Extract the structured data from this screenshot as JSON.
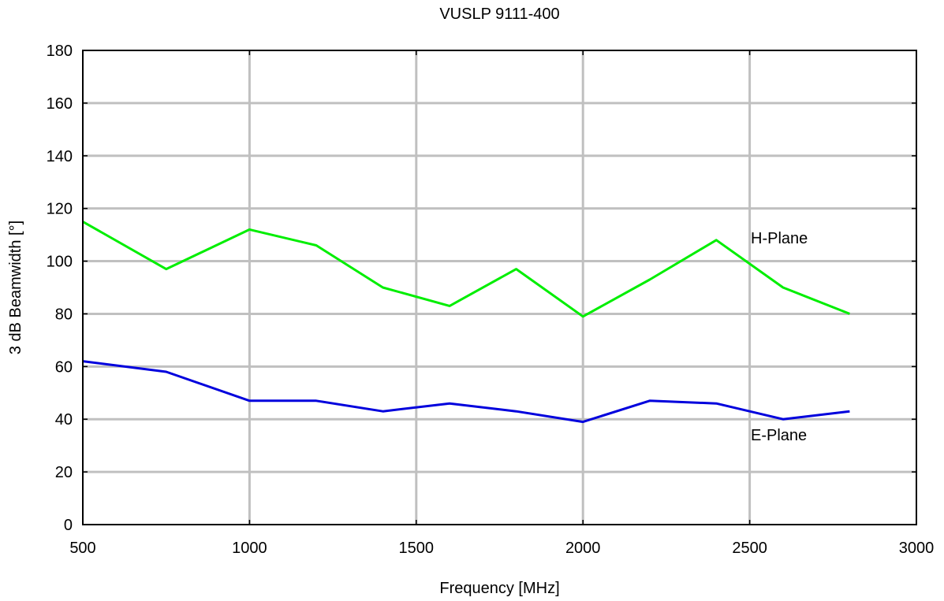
{
  "chart_data": {
    "type": "line",
    "title": "VUSLP 9111-400",
    "xlabel": "Frequency [MHz]",
    "ylabel": "3 dB Beamwidth [°]",
    "xlim": [
      500,
      3000
    ],
    "ylim": [
      0,
      180
    ],
    "xticks": [
      500,
      1000,
      1500,
      2000,
      2500,
      3000
    ],
    "yticks": [
      0,
      20,
      40,
      60,
      80,
      100,
      120,
      140,
      160,
      180
    ],
    "grid": true,
    "series": [
      {
        "name": "H-Plane",
        "color": "#00ee00",
        "x": [
          500,
          750,
          1000,
          1200,
          1400,
          1600,
          1800,
          2000,
          2200,
          2400,
          2600,
          2800
        ],
        "y": [
          115,
          97,
          112,
          106,
          90,
          83,
          97,
          79,
          93,
          108,
          90,
          80
        ]
      },
      {
        "name": "E-Plane",
        "color": "#0000dd",
        "x": [
          500,
          750,
          1000,
          1200,
          1400,
          1600,
          1800,
          2000,
          2200,
          2400,
          2600,
          2800
        ],
        "y": [
          62,
          58,
          47,
          47,
          43,
          46,
          43,
          39,
          47,
          46,
          40,
          43
        ]
      }
    ]
  }
}
